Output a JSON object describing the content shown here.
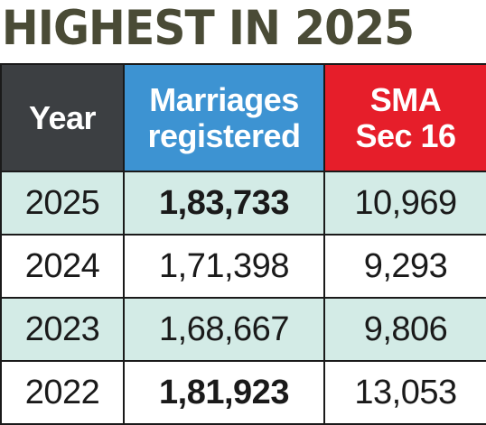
{
  "title": "HIGHEST IN 2025",
  "header": {
    "year": "Year",
    "marriages_line1": "Marriages",
    "marriages_line2": "registered",
    "sma_line1": "SMA",
    "sma_line2": "Sec 16"
  },
  "colors": {
    "year_header": "#3c3f42",
    "marriages_header": "#3d93d2",
    "sma_header": "#e61e2a",
    "alt_row": "#d3ebe6",
    "title": "#4a4b36"
  },
  "chart_data": {
    "type": "table",
    "title": "HIGHEST IN 2025",
    "columns": [
      "Year",
      "Marriages registered",
      "SMA Sec 16"
    ],
    "rows": [
      {
        "year": "2025",
        "marriages": "1,83,733",
        "sma": "10,969",
        "marriages_bold": true
      },
      {
        "year": "2024",
        "marriages": "1,71,398",
        "sma": "9,293",
        "marriages_bold": false
      },
      {
        "year": "2023",
        "marriages": "1,68,667",
        "sma": "9,806",
        "marriages_bold": false
      },
      {
        "year": "2022",
        "marriages": "1,81,923",
        "sma": "13,053",
        "marriages_bold": true
      }
    ]
  }
}
